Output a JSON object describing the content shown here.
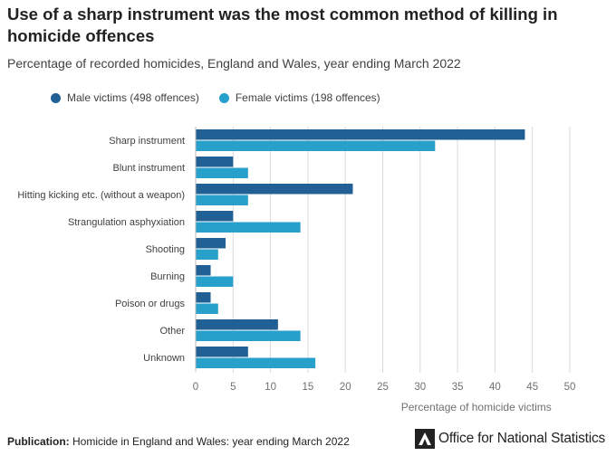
{
  "title": "Use of a sharp instrument was the most common method of killing in homicide offences",
  "subtitle": "Percentage of recorded homicides, England and Wales, year ending March 2022",
  "footer": {
    "label": "Publication:",
    "text": "Homicide in England and Wales: year ending March 2022",
    "org": "Office for National Statistics"
  },
  "colors": {
    "male": "#206095",
    "female": "#27a0cc",
    "grid": "#d9d9d9",
    "axis_text": "#707070"
  },
  "chart_data": {
    "type": "bar",
    "orientation": "horizontal",
    "categories": [
      "Sharp instrument",
      "Blunt instrument",
      "Hitting kicking etc. (without a weapon)",
      "Strangulation asphyxiation",
      "Shooting",
      "Burning",
      "Poison or drugs",
      "Other",
      "Unknown"
    ],
    "series": [
      {
        "name": "Male victims (498 offences)",
        "values": [
          44,
          5,
          21,
          5,
          4,
          2,
          2,
          11,
          7
        ]
      },
      {
        "name": "Female victims (198 offences)",
        "values": [
          32,
          7,
          7,
          14,
          3,
          5,
          3,
          14,
          16
        ]
      }
    ],
    "xlabel": "Percentage of homicide victims",
    "xlim": [
      0,
      50
    ],
    "xticks": [
      0,
      5,
      10,
      15,
      20,
      25,
      30,
      35,
      40,
      45,
      50
    ],
    "grid": true,
    "legend_position": "top-left"
  }
}
